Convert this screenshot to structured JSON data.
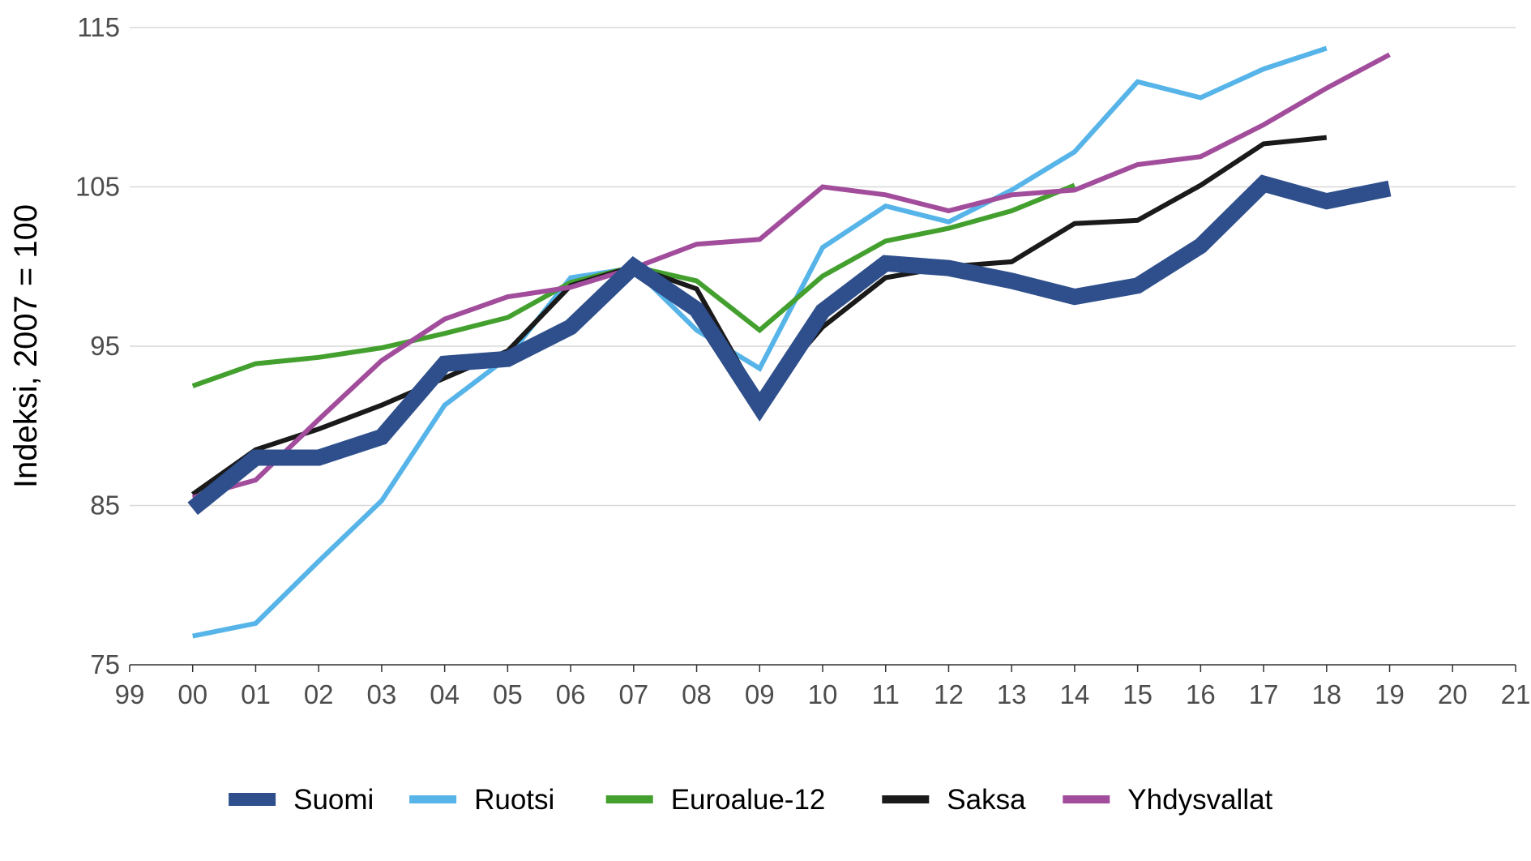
{
  "chart_data": {
    "type": "line",
    "title": "",
    "xlabel": "",
    "ylabel": "Indeksi, 2007 = 100",
    "ylim": [
      75,
      115
    ],
    "yticks": [
      75,
      85,
      95,
      105,
      115
    ],
    "xlim": [
      1999,
      2021
    ],
    "xtick_labels": [
      "99",
      "00",
      "01",
      "02",
      "03",
      "04",
      "05",
      "06",
      "07",
      "08",
      "09",
      "10",
      "11",
      "12",
      "13",
      "14",
      "15",
      "16",
      "17",
      "18",
      "19",
      "20",
      "21"
    ],
    "grid": "horizontal",
    "legend_position": "bottom",
    "series": [
      {
        "name": "Ruotsi",
        "color": "#56b4e9",
        "x": [
          2000,
          2001,
          2002,
          2003,
          2004,
          2005,
          2006,
          2007,
          2008,
          2009,
          2010,
          2011,
          2012,
          2013,
          2014,
          2015,
          2016,
          2017,
          2018
        ],
        "values": [
          76.8,
          77.6,
          81.5,
          85.3,
          91.3,
          94.3,
          99.3,
          99.9,
          96.0,
          93.6,
          101.2,
          103.8,
          102.8,
          104.8,
          107.2,
          111.6,
          110.6,
          112.4,
          113.7
        ]
      },
      {
        "name": "Euroalue-12",
        "color": "#43a02e",
        "x": [
          2000,
          2001,
          2002,
          2003,
          2004,
          2005,
          2006,
          2007,
          2008,
          2009,
          2010,
          2011,
          2012,
          2013,
          2014
        ],
        "values": [
          92.5,
          93.9,
          94.3,
          94.9,
          95.8,
          96.8,
          99.0,
          100.0,
          99.1,
          96.0,
          99.4,
          101.6,
          102.4,
          103.5,
          105.1
        ]
      },
      {
        "name": "Saksa",
        "color": "#1a1a1a",
        "x": [
          2000,
          2001,
          2002,
          2003,
          2004,
          2005,
          2006,
          2007,
          2008,
          2009,
          2010,
          2011,
          2012,
          2013,
          2014,
          2015,
          2016,
          2017,
          2018
        ],
        "values": [
          85.7,
          88.5,
          89.8,
          91.3,
          93.0,
          94.7,
          98.8,
          100.0,
          98.6,
          91.6,
          96.2,
          99.3,
          100.0,
          100.3,
          102.7,
          102.9,
          105.1,
          107.7,
          108.1
        ]
      },
      {
        "name": "Yhdysvallat",
        "color": "#a24d9c",
        "x": [
          2000,
          2001,
          2002,
          2003,
          2004,
          2005,
          2006,
          2007,
          2008,
          2009,
          2010,
          2011,
          2012,
          2013,
          2014,
          2015,
          2016,
          2017,
          2018,
          2019
        ],
        "values": [
          85.5,
          86.6,
          90.4,
          94.1,
          96.7,
          98.1,
          98.7,
          99.9,
          101.4,
          101.7,
          105.0,
          104.5,
          103.5,
          104.5,
          104.8,
          106.4,
          106.9,
          108.9,
          111.2,
          113.3
        ]
      },
      {
        "name": "Suomi",
        "color": "#2e4f8c",
        "x": [
          2000,
          2001,
          2002,
          2003,
          2004,
          2005,
          2006,
          2007,
          2008,
          2009,
          2010,
          2011,
          2012,
          2013,
          2014,
          2015,
          2016,
          2017,
          2018,
          2019
        ],
        "values": [
          84.8,
          88.0,
          88.0,
          89.3,
          93.9,
          94.2,
          96.2,
          100.0,
          97.3,
          91.2,
          97.2,
          100.2,
          99.9,
          99.1,
          98.1,
          98.8,
          101.3,
          105.2,
          104.1,
          104.9
        ]
      }
    ],
    "legend_order": [
      "Suomi",
      "Ruotsi",
      "Euroalue-12",
      "Saksa",
      "Yhdysvallat"
    ]
  }
}
